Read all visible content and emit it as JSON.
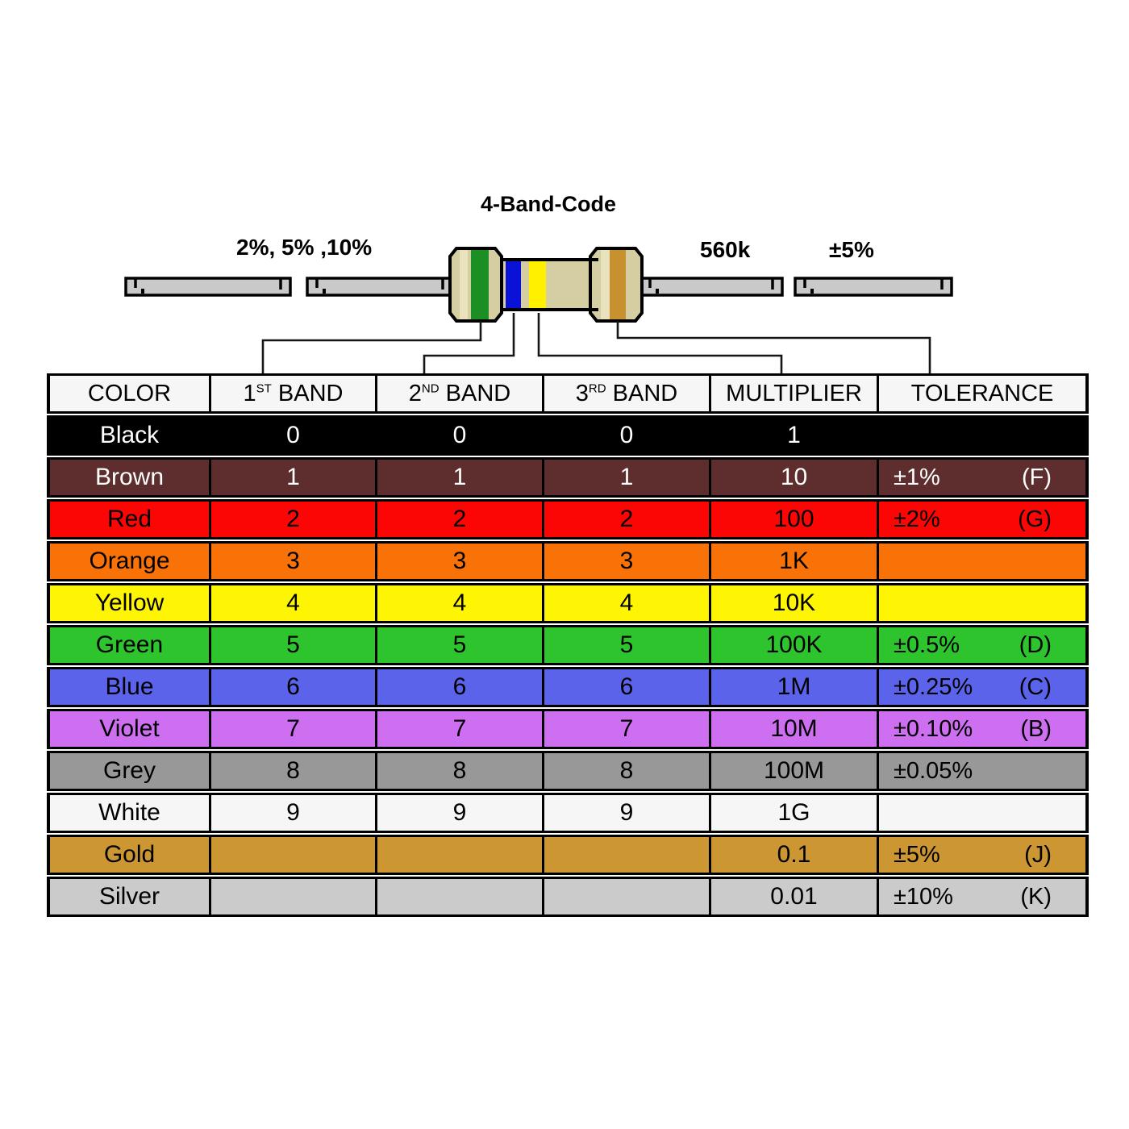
{
  "title": "4-Band-Code",
  "labels": {
    "tolerance_options": "2%, 5% ,10%",
    "resistance_value": "560k",
    "tolerance_value": "±5%"
  },
  "resistor": {
    "body_color": "#D5CEA3",
    "body_highlight": "#E9E3BD",
    "lead_color": "#C9C9C9",
    "bands": [
      {
        "name": "green",
        "color": "#1B8E24"
      },
      {
        "name": "blue",
        "color": "#0B12D8"
      },
      {
        "name": "yellow",
        "color": "#FFF000"
      },
      {
        "name": "gold",
        "color": "#C8912F"
      }
    ]
  },
  "table": {
    "headers": [
      {
        "pre": "COLOR",
        "sup": "",
        "post": ""
      },
      {
        "pre": "1",
        "sup": "ST",
        "post": " BAND"
      },
      {
        "pre": "2",
        "sup": "ND",
        "post": " BAND"
      },
      {
        "pre": "3",
        "sup": "RD",
        "post": " BAND"
      },
      {
        "pre": "MULTIPLIER",
        "sup": "",
        "post": ""
      },
      {
        "pre": "TOLERANCE",
        "sup": "",
        "post": ""
      }
    ],
    "rows": [
      {
        "color": "Black",
        "bg": "#000000",
        "fg": "#FFFFFF",
        "band1": "0",
        "band2": "0",
        "band3": "0",
        "multiplier": "1",
        "tolerance": "",
        "tolerance_code": ""
      },
      {
        "color": "Brown",
        "bg": "#5E2E2E",
        "fg": "#FFFFFF",
        "band1": "1",
        "band2": "1",
        "band3": "1",
        "multiplier": "10",
        "tolerance": "±1%",
        "tolerance_code": "(F)"
      },
      {
        "color": "Red",
        "bg": "#FB0505",
        "fg": "#000000",
        "band1": "2",
        "band2": "2",
        "band3": "2",
        "multiplier": "100",
        "tolerance": "±2%",
        "tolerance_code": "(G)"
      },
      {
        "color": "Orange",
        "bg": "#F87208",
        "fg": "#000000",
        "band1": "3",
        "band2": "3",
        "band3": "3",
        "multiplier": "1K",
        "tolerance": "",
        "tolerance_code": ""
      },
      {
        "color": "Yellow",
        "bg": "#FDF503",
        "fg": "#000000",
        "band1": "4",
        "band2": "4",
        "band3": "4",
        "multiplier": "10K",
        "tolerance": "",
        "tolerance_code": ""
      },
      {
        "color": "Green",
        "bg": "#2EC42E",
        "fg": "#000000",
        "band1": "5",
        "band2": "5",
        "band3": "5",
        "multiplier": "100K",
        "tolerance": "±0.5%",
        "tolerance_code": "(D)"
      },
      {
        "color": "Blue",
        "bg": "#5B63EA",
        "fg": "#000000",
        "band1": "6",
        "band2": "6",
        "band3": "6",
        "multiplier": "1M",
        "tolerance": "±0.25%",
        "tolerance_code": "(C)"
      },
      {
        "color": "Violet",
        "bg": "#CE6FF1",
        "fg": "#000000",
        "band1": "7",
        "band2": "7",
        "band3": "7",
        "multiplier": "10M",
        "tolerance": "±0.10%",
        "tolerance_code": "(B)"
      },
      {
        "color": "Grey",
        "bg": "#989898",
        "fg": "#000000",
        "band1": "8",
        "band2": "8",
        "band3": "8",
        "multiplier": "100M",
        "tolerance": "±0.05%",
        "tolerance_code": ""
      },
      {
        "color": "White",
        "bg": "#F6F6F6",
        "fg": "#000000",
        "band1": "9",
        "band2": "9",
        "band3": "9",
        "multiplier": "1G",
        "tolerance": "",
        "tolerance_code": ""
      },
      {
        "color": "Gold",
        "bg": "#CC9733",
        "fg": "#000000",
        "band1": "",
        "band2": "",
        "band3": "",
        "multiplier": "0.1",
        "tolerance": "±5%",
        "tolerance_code": "(J)"
      },
      {
        "color": "Silver",
        "bg": "#CBCBCB",
        "fg": "#000000",
        "band1": "",
        "band2": "",
        "band3": "",
        "multiplier": "0.01",
        "tolerance": "±10%",
        "tolerance_code": "(K)"
      }
    ]
  }
}
